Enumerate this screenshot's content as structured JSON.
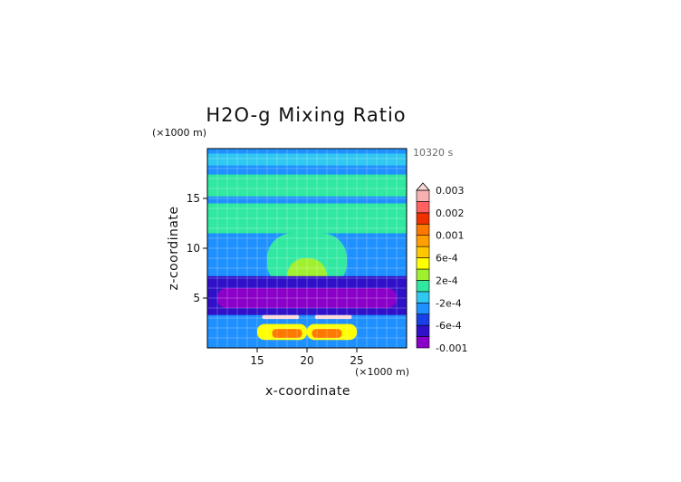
{
  "chart_data": {
    "type": "heatmap",
    "title": "H2O-g Mixing Ratio",
    "xlabel": "x-coordinate",
    "ylabel": "z-coordinate",
    "x_unit": "(×1000 m)",
    "y_unit": "(×1000 m)",
    "time_label": "10320 s",
    "xlim": [
      10,
      30
    ],
    "ylim": [
      0,
      20
    ],
    "x_ticks": [
      15,
      20,
      25
    ],
    "y_ticks": [
      5,
      10,
      15
    ],
    "grid": true,
    "colorbar": {
      "labels": [
        "0.003",
        "0.002",
        "0.001",
        "6e-4",
        "2e-4",
        "-2e-4",
        "-6e-4",
        "-0.001"
      ],
      "bins": [
        {
          "lo": -0.001,
          "hi": -0.0008,
          "color": "#8a00c8"
        },
        {
          "lo": -0.0008,
          "hi": -0.0006,
          "color": "#3010c8"
        },
        {
          "lo": -0.0006,
          "hi": -0.0004,
          "color": "#1840e8"
        },
        {
          "lo": -0.0004,
          "hi": -0.0002,
          "color": "#1e90ff"
        },
        {
          "lo": -0.0002,
          "hi": 0.0,
          "color": "#30c8f0"
        },
        {
          "lo": 0.0,
          "hi": 0.0002,
          "color": "#30e8a0"
        },
        {
          "lo": 0.0002,
          "hi": 0.0004,
          "color": "#a0f030"
        },
        {
          "lo": 0.0004,
          "hi": 0.0006,
          "color": "#ffff00"
        },
        {
          "lo": 0.0006,
          "hi": 0.0008,
          "color": "#ffc800"
        },
        {
          "lo": 0.0008,
          "hi": 0.001,
          "color": "#ffa000"
        },
        {
          "lo": 0.001,
          "hi": 0.0015,
          "color": "#ff7800"
        },
        {
          "lo": 0.0015,
          "hi": 0.002,
          "color": "#f03000"
        },
        {
          "lo": 0.002,
          "hi": 0.0025,
          "color": "#ff6060"
        },
        {
          "lo": 0.0025,
          "hi": 0.003,
          "color": "#f8b0b0"
        }
      ],
      "over_color": "#fcd8d8"
    },
    "regions": [
      {
        "name": "background",
        "value": -0.0003,
        "x": [
          10,
          30
        ],
        "z": [
          0,
          20
        ]
      },
      {
        "name": "top-layer",
        "value": -0.0001,
        "x": [
          10,
          30
        ],
        "z": [
          18.3,
          19.5
        ]
      },
      {
        "name": "upper-band",
        "value": 0.0001,
        "x": [
          10,
          30
        ],
        "z": [
          15.2,
          17.4
        ]
      },
      {
        "name": "mid-band",
        "value": 0.0001,
        "x": [
          10,
          30
        ],
        "z": [
          11.5,
          14.5
        ]
      },
      {
        "name": "plume-stem",
        "value": 0.0001,
        "x": [
          16,
          24
        ],
        "z": [
          6,
          11.5
        ]
      },
      {
        "name": "plume-core",
        "value": 0.0003,
        "x": [
          18,
          22
        ],
        "z": [
          5,
          9
        ]
      },
      {
        "name": "plume-inner",
        "value": 0.0005,
        "x": [
          18.8,
          21.2
        ],
        "z": [
          5.2,
          6.5
        ]
      },
      {
        "name": "lower-dry-layer",
        "value": -0.0007,
        "x": [
          10,
          30
        ],
        "z": [
          3.3,
          7.2
        ]
      },
      {
        "name": "dry-core",
        "value": -0.0009,
        "x": [
          11,
          29
        ],
        "z": [
          4.0,
          6.0
        ]
      },
      {
        "name": "low-moist-left",
        "value": 0.0005,
        "x": [
          15,
          20
        ],
        "z": [
          0.8,
          2.4
        ]
      },
      {
        "name": "low-moist-right",
        "value": 0.0005,
        "x": [
          20,
          25
        ],
        "z": [
          0.8,
          2.4
        ]
      },
      {
        "name": "warm-core-left",
        "value": 0.0012,
        "x": [
          16.5,
          19.5
        ],
        "z": [
          1.0,
          1.9
        ]
      },
      {
        "name": "warm-core-right",
        "value": 0.0012,
        "x": [
          20.5,
          23.5
        ],
        "z": [
          1.0,
          1.9
        ]
      },
      {
        "name": "white-streak-left",
        "value": 0.0035,
        "x": [
          15.5,
          19.2
        ],
        "z": [
          2.9,
          3.3
        ]
      },
      {
        "name": "white-streak-right",
        "value": 0.0035,
        "x": [
          20.8,
          24.5
        ],
        "z": [
          2.9,
          3.3
        ]
      }
    ]
  }
}
